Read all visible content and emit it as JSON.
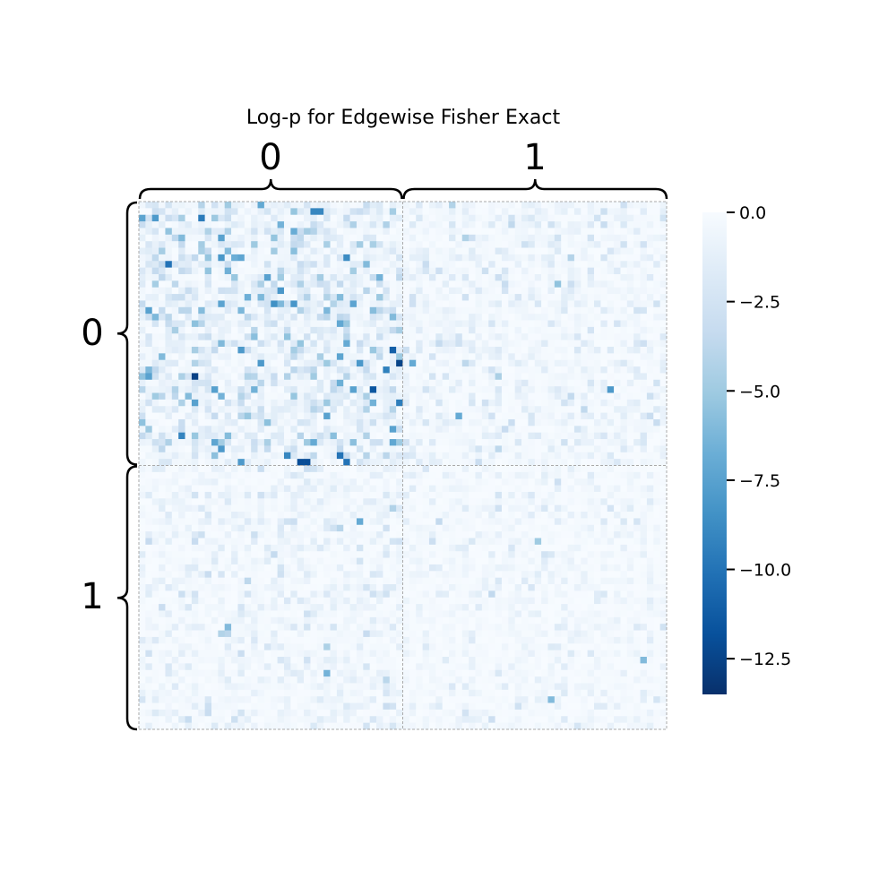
{
  "chart_data": {
    "type": "heatmap",
    "title": "Log-p for Edgewise Fisher Exact",
    "rows": 80,
    "cols": 80,
    "block_labels": [
      "0",
      "1"
    ],
    "block_sizes": [
      40,
      40
    ],
    "colormap": "Blues_r",
    "color_low": "#08306b",
    "color_high": "#f7fbff",
    "vmin": -13.5,
    "vmax": 0.0,
    "colorbar_ticks": [
      0.0,
      -2.5,
      -5.0,
      -7.5,
      -10.0,
      -12.5
    ],
    "colorbar_tick_labels": [
      "0.0",
      "−2.5",
      "−5.0",
      "−7.5",
      "−10.0",
      "−12.5"
    ],
    "block_mean_logp": [
      [
        -2.2,
        -0.9
      ],
      [
        -0.8,
        -0.6
      ]
    ],
    "highlighted_cells": [
      {
        "row": 1,
        "col": 26,
        "value": -9.0
      },
      {
        "row": 1,
        "col": 27,
        "value": -9.0
      },
      {
        "row": 3,
        "col": 21,
        "value": -6.5
      },
      {
        "row": 9,
        "col": 34,
        "value": -6.0
      },
      {
        "row": 11,
        "col": 36,
        "value": -6.5
      },
      {
        "row": 15,
        "col": 20,
        "value": -8.5
      },
      {
        "row": 17,
        "col": 38,
        "value": -6.0
      },
      {
        "row": 21,
        "col": 31,
        "value": -7.0
      },
      {
        "row": 22,
        "col": 15,
        "value": -8.0
      },
      {
        "row": 22,
        "col": 38,
        "value": -11.0
      },
      {
        "row": 24,
        "col": 39,
        "value": -12.5
      },
      {
        "row": 24,
        "col": 18,
        "value": -8.0
      },
      {
        "row": 26,
        "col": 1,
        "value": -7.5
      },
      {
        "row": 28,
        "col": 32,
        "value": -7.5
      },
      {
        "row": 30,
        "col": 39,
        "value": -9.5
      },
      {
        "row": 32,
        "col": 28,
        "value": -7.5
      },
      {
        "row": 34,
        "col": 38,
        "value": -7.5
      },
      {
        "row": 36,
        "col": 26,
        "value": -7.0
      },
      {
        "row": 37,
        "col": 12,
        "value": -8.0
      },
      {
        "row": 38,
        "col": 22,
        "value": -9.0
      },
      {
        "row": 38,
        "col": 30,
        "value": -10.0
      },
      {
        "row": 39,
        "col": 24,
        "value": -12.0
      },
      {
        "row": 39,
        "col": 25,
        "value": -12.0
      },
      {
        "row": 39,
        "col": 31,
        "value": -10.0
      },
      {
        "row": 39,
        "col": 15,
        "value": -8.0
      },
      {
        "row": 24,
        "col": 41,
        "value": -7.0
      },
      {
        "row": 28,
        "col": 71,
        "value": -8.0
      },
      {
        "row": 32,
        "col": 48,
        "value": -7.0
      },
      {
        "row": 12,
        "col": 63,
        "value": -5.5
      },
      {
        "row": 48,
        "col": 33,
        "value": -7.0
      },
      {
        "row": 64,
        "col": 13,
        "value": -6.0
      },
      {
        "row": 71,
        "col": 28,
        "value": -6.5
      },
      {
        "row": 69,
        "col": 76,
        "value": -6.0
      },
      {
        "row": 51,
        "col": 60,
        "value": -5.0
      },
      {
        "row": 75,
        "col": 62,
        "value": -6.0
      }
    ]
  }
}
